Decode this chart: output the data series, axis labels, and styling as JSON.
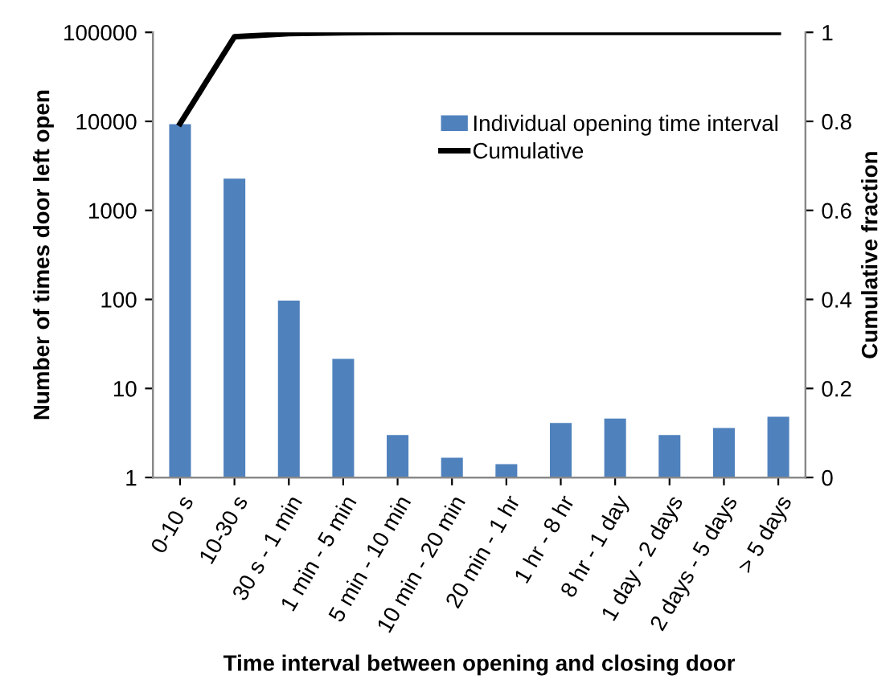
{
  "chart_data": {
    "type": "bar",
    "xlabel": "Time interval between opening and closing door",
    "ylabel": "Number of times door left open",
    "y2label": "Cumulative fraction",
    "categories": [
      "0-10 s",
      "10-30 s",
      "30 s - 1 min",
      "1 min - 5 min",
      "5 min - 10 min",
      "10 min - 20 min",
      "20 min - 1 hr",
      "1 hr - 8 hr",
      "8 hr - 1 day",
      "1 day - 2 days",
      "2 days - 5 days",
      "> 5 days"
    ],
    "series": [
      {
        "name": "Individual opening time interval",
        "color": "#4f81bd",
        "values": [
          9300,
          2270,
          97,
          21.5,
          3.0,
          1.67,
          1.41,
          4.1,
          4.6,
          3.0,
          3.6,
          4.8
        ]
      },
      {
        "name": "Cumulative",
        "type": "line",
        "axis": "y2",
        "color": "#000000",
        "values": [
          0.795,
          0.99,
          0.997,
          0.999,
          1.0,
          1.0,
          1.0,
          1.0,
          1.0,
          1.0,
          1.0,
          1.0
        ]
      }
    ],
    "log": "y",
    "ylim": [
      1,
      100000
    ],
    "yticks": [
      1,
      10,
      100,
      1000,
      10000,
      100000
    ],
    "y2lim": [
      0,
      1
    ],
    "y2ticks": [
      0,
      0.2,
      0.4,
      0.6,
      0.8,
      1
    ],
    "grid": false,
    "legend": "top right",
    "marker": "none",
    "line_style": "solid"
  }
}
